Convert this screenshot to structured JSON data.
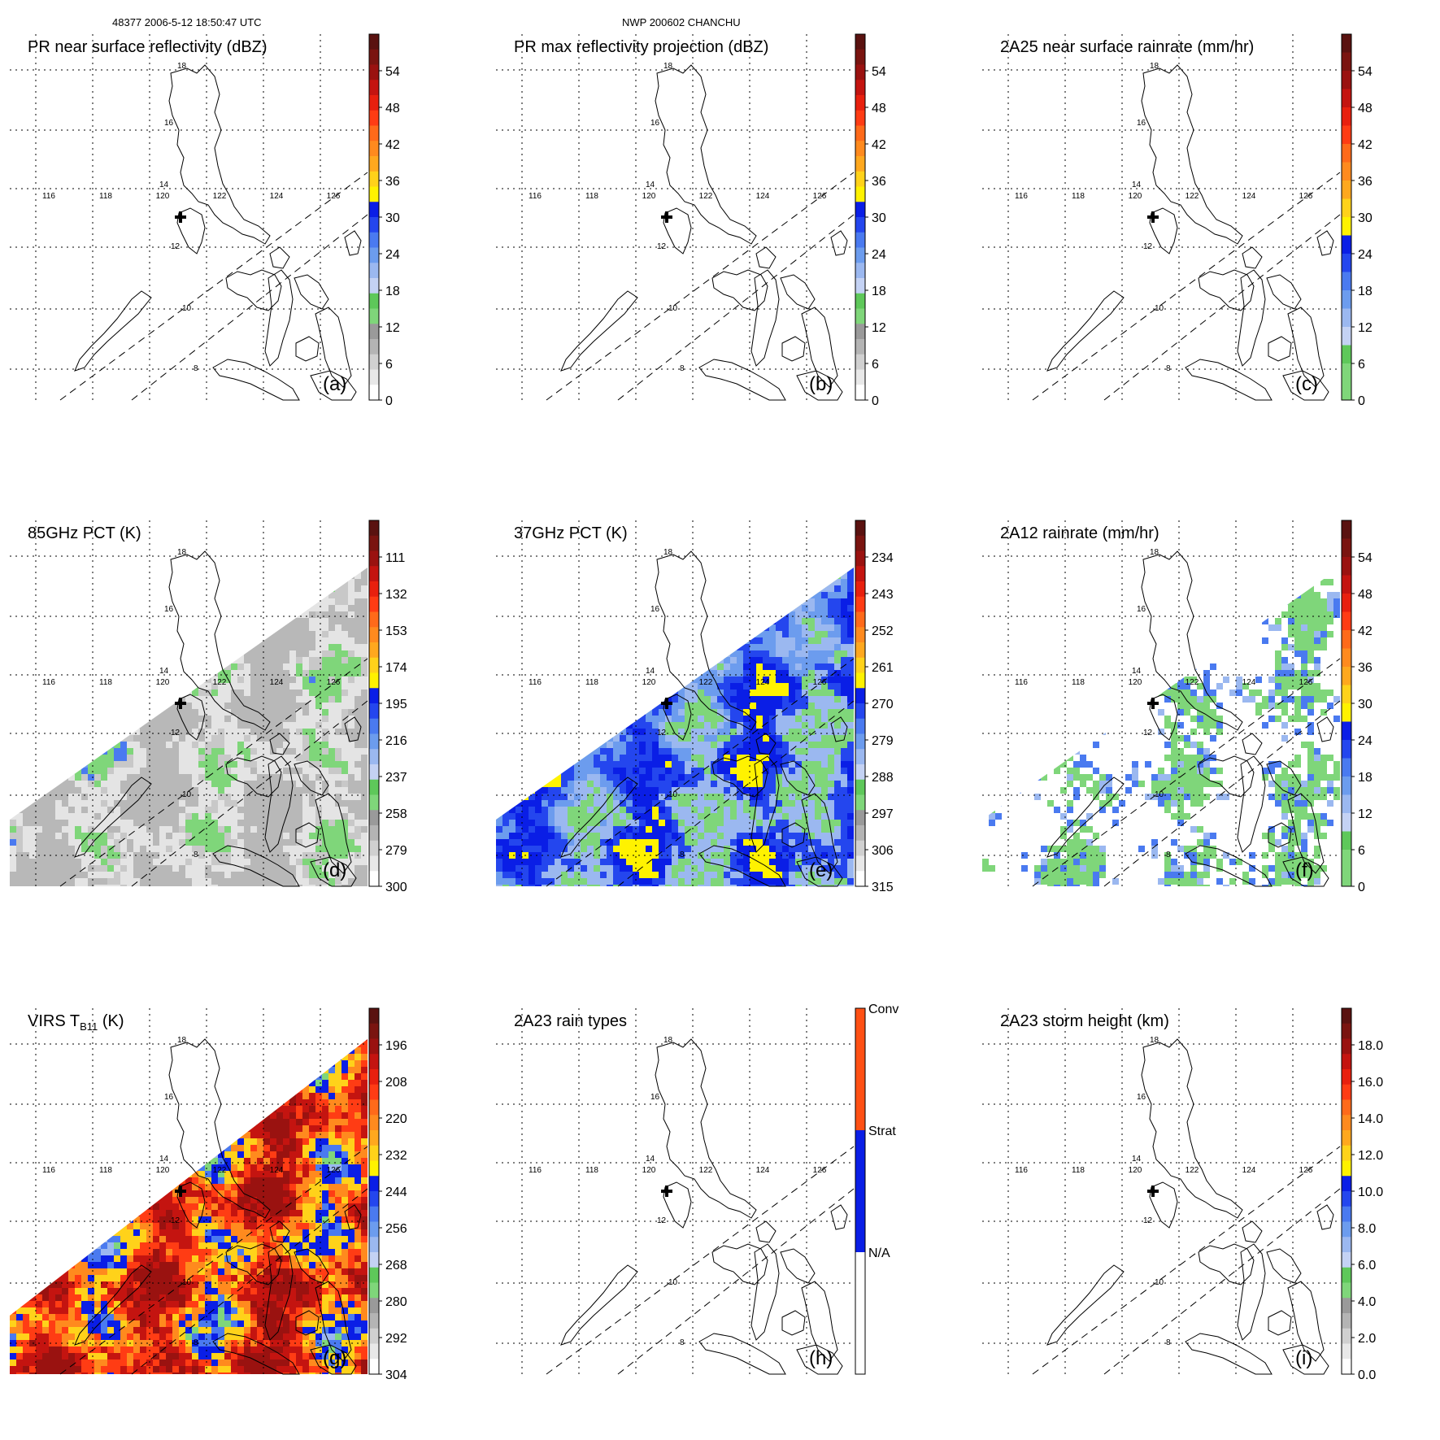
{
  "header": {
    "left": "48377 2006-5-12 18:50:47 UTC",
    "center": "NWP 200602 CHANCHU"
  },
  "lon_labels": [
    "116",
    "118",
    "120",
    "122",
    "124",
    "126"
  ],
  "lat_labels": [
    "8",
    "10",
    "12",
    "14",
    "16",
    "18"
  ],
  "colors": {
    "scale": [
      "#ffffff",
      "#e8e8e8",
      "#d0d0d0",
      "#b4b4b4",
      "#9a9a9a",
      "#7fd67a",
      "#5ec85a",
      "#c4d2f4",
      "#9bb8f0",
      "#6c9cee",
      "#4a7af0",
      "#2446ee",
      "#0a1ee6",
      "#fff200",
      "#ffd21a",
      "#ffa81e",
      "#ff8a1e",
      "#ff6a1a",
      "#ff3c14",
      "#e8200e",
      "#c41410",
      "#9a1210",
      "#7a1410",
      "#5a1210"
    ],
    "raintypes": [
      "#ffffff",
      "#0a1ee6",
      "#ff5014"
    ]
  },
  "panels": [
    {
      "id": "a",
      "title": "PR near surface reflectivity (dBZ)",
      "letter": "(a)",
      "ticks": [
        "54",
        "48",
        "42",
        "36",
        "30",
        "24",
        "18",
        "12",
        "6",
        "0"
      ],
      "scale": "dbz",
      "data": "pr",
      "density": 0.55
    },
    {
      "id": "b",
      "title": "PR max reflectivity projection (dBZ)",
      "letter": "(b)",
      "ticks": [
        "54",
        "48",
        "42",
        "36",
        "30",
        "24",
        "18",
        "12",
        "6",
        "0"
      ],
      "scale": "dbz",
      "data": "pr",
      "density": 0.85
    },
    {
      "id": "c",
      "title": "2A25 near surface rainrate (mm/hr)",
      "letter": "(c)",
      "ticks": [
        "54",
        "48",
        "42",
        "36",
        "30",
        "24",
        "18",
        "12",
        "6",
        "0"
      ],
      "scale": "rain",
      "data": "pr",
      "density": 0.6
    },
    {
      "id": "d",
      "title": "85GHz PCT (K)",
      "letter": "(d)",
      "ticks": [
        "111",
        "132",
        "153",
        "174",
        "195",
        "216",
        "237",
        "258",
        "279",
        "300"
      ],
      "scale": "pct85",
      "data": "tmi",
      "density": 1
    },
    {
      "id": "e",
      "title": "37GHz PCT (K)",
      "letter": "(e)",
      "ticks": [
        "234",
        "243",
        "252",
        "261",
        "270",
        "279",
        "288",
        "297",
        "306",
        "315"
      ],
      "scale": "pct37",
      "data": "tmi",
      "density": 1
    },
    {
      "id": "f",
      "title": "2A12 rainrate (mm/hr)",
      "letter": "(f)",
      "ticks": [
        "54",
        "48",
        "42",
        "36",
        "30",
        "24",
        "18",
        "12",
        "6",
        "0"
      ],
      "scale": "rain",
      "data": "tmi",
      "density": 0.55
    },
    {
      "id": "g",
      "title_main": "VIRS T",
      "title_sub": "B11",
      "title_unit": " (K)",
      "letter": "(g)",
      "ticks": [
        "196",
        "208",
        "220",
        "232",
        "244",
        "256",
        "268",
        "280",
        "292",
        "304"
      ],
      "scale": "virs",
      "data": "virs",
      "density": 1
    },
    {
      "id": "h",
      "title": "2A23 rain types",
      "letter": "(h)",
      "ticks": [
        "Conv",
        "Strat",
        "N/A"
      ],
      "scale": "raintype",
      "data": "pr",
      "density": 0.7
    },
    {
      "id": "i",
      "title": "2A23 storm height (km)",
      "letter": "(i)",
      "ticks": [
        "18.0",
        "16.0",
        "14.0",
        "12.0",
        "10.0",
        "8.0",
        "6.0",
        "4.0",
        "2.0",
        "0.0"
      ],
      "scale": "height",
      "data": "pr",
      "density": 0.5
    }
  ]
}
